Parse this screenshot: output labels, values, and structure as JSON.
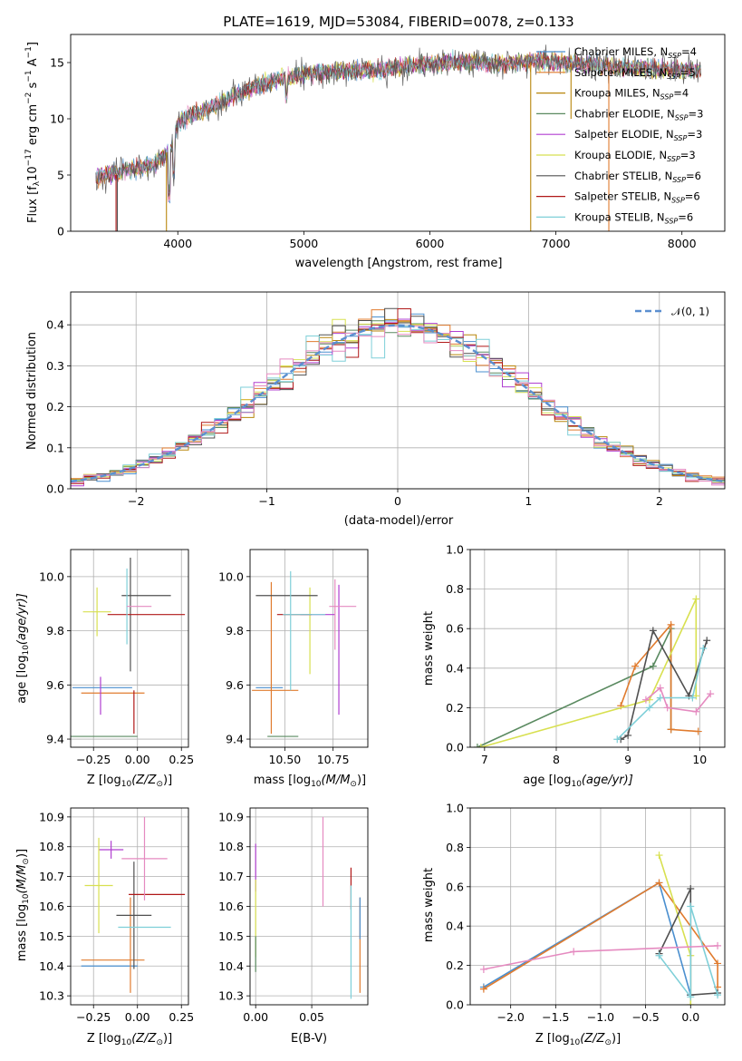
{
  "title": "PLATE=1619, MJD=53084, FIBERID=0078, z=0.133",
  "colors": [
    "#4a8fcf",
    "#e07b2e",
    "#b8860b",
    "#5a8a60",
    "#b03fd0",
    "#d8e050",
    "#505050",
    "#b01818",
    "#7ecfd8",
    "#e58ac0"
  ],
  "legend": [
    {
      "label": "Chabrier MILES, N",
      "sub": "SSP",
      "suf": "=4",
      "color": "#4a8fcf"
    },
    {
      "label": "Salpeter MILES, N",
      "sub": "SSP",
      "suf": "=5",
      "color": "#e07b2e"
    },
    {
      "label": "Kroupa MILES, N",
      "sub": "SSP",
      "suf": "=4",
      "color": "#b8860b"
    },
    {
      "label": "Chabrier ELODIE, N",
      "sub": "SSP",
      "suf": "=3",
      "color": "#5a8a60"
    },
    {
      "label": "Salpeter ELODIE, N",
      "sub": "SSP",
      "suf": "=3",
      "color": "#b03fd0"
    },
    {
      "label": "Kroupa ELODIE, N",
      "sub": "SSP",
      "suf": "=3",
      "color": "#d8e050"
    },
    {
      "label": "Chabrier STELIB, N",
      "sub": "SSP",
      "suf": "=6",
      "color": "#505050"
    },
    {
      "label": "Salpeter STELIB, N",
      "sub": "SSP",
      "suf": "=6",
      "color": "#b01818"
    },
    {
      "label": "Kroupa STELIB, N",
      "sub": "SSP",
      "suf": "=6",
      "color": "#7ecfd8"
    }
  ],
  "labels": {
    "spec_x": "wavelength [Angstrom, rest frame]",
    "spec_y": "Flux [f",
    "spec_y_tail": "10",
    "spec_y_exp": "−17",
    "spec_y_units": " erg cm",
    "spec_y_u2": "−2",
    "spec_y_u3": " s",
    "spec_y_u4": "−1",
    "spec_y_u5": " A",
    "spec_y_u6": "−1",
    "spec_y_end": "]",
    "hist_x": "(data-model)/error",
    "hist_y": "Normed distribution",
    "hist_legend": "𝒩(0, 1)",
    "z_label": "Z [log",
    "z_label_sub": "10",
    "z_label_tail": "(Z/Z",
    "z_label_sun": "⊙",
    "z_label_end": ")]",
    "age_label": "age  [log",
    "age_label_sub": "10",
    "age_label_tail": "(age/yr)]",
    "mass_label": "mass [log",
    "mass_label_sub": "10",
    "mass_label_tail": "(M/M",
    "mass_label_sun": "⊙",
    "mass_label_end": ")]",
    "mw_label": "mass weight",
    "ebv_label": "E(B-V)"
  },
  "chart_data": [
    {
      "id": "spectrum",
      "type": "line",
      "title": "PLATE=1619, MJD=53084, FIBERID=0078, z=0.133",
      "xlabel": "wavelength [Angstrom, rest frame]",
      "ylabel": "Flux [fλ10^-17 erg cm^-2 s^-1 A^-1]",
      "xlim": [
        3150,
        8340
      ],
      "ylim": [
        0,
        17.5
      ],
      "xticks": [
        4000,
        5000,
        6000,
        7000,
        8000
      ],
      "yticks": [
        0,
        5,
        10,
        15
      ],
      "continuum": [
        [
          3350,
          4.8
        ],
        [
          3500,
          5.2
        ],
        [
          3650,
          5.6
        ],
        [
          3800,
          5.8
        ],
        [
          3950,
          7.4
        ],
        [
          4000,
          9.6
        ],
        [
          4100,
          10.3
        ],
        [
          4300,
          11.2
        ],
        [
          4500,
          12.4
        ],
        [
          4700,
          13.2
        ],
        [
          4900,
          13.8
        ],
        [
          5100,
          14.1
        ],
        [
          5300,
          14.2
        ],
        [
          5500,
          14.3
        ],
        [
          5700,
          14.5
        ],
        [
          5900,
          14.8
        ],
        [
          6100,
          15.0
        ],
        [
          6300,
          15.0
        ],
        [
          6500,
          14.9
        ],
        [
          6700,
          15.0
        ],
        [
          6900,
          15.1
        ],
        [
          7100,
          15.0
        ],
        [
          7300,
          14.8
        ],
        [
          7500,
          14.6
        ],
        [
          7700,
          14.5
        ],
        [
          7900,
          14.4
        ],
        [
          8150,
          14.3
        ]
      ]
    },
    {
      "id": "residuals",
      "type": "histogram",
      "xlabel": "(data-model)/error",
      "ylabel": "Normed distribution",
      "xlim": [
        -2.5,
        2.5
      ],
      "ylim": [
        0,
        0.48
      ],
      "xticks": [
        -2,
        -1,
        0,
        1,
        2
      ],
      "yticks": [
        0.0,
        0.1,
        0.2,
        0.3,
        0.4
      ],
      "legend": [
        "𝒩(0, 1)"
      ],
      "legend_position": "top-right",
      "bin_width": 0.1
    },
    {
      "id": "age_vs_Z",
      "type": "scatter",
      "xlabel": "Z [log10(Z/Z⊙)]",
      "ylabel": "age  [log10(age/yr)]",
      "xlim": [
        -0.38,
        0.29
      ],
      "ylim": [
        9.37,
        10.1
      ],
      "xticks": [
        -0.25,
        0.0,
        0.25
      ],
      "yticks": [
        9.4,
        9.6,
        9.8,
        10.0
      ],
      "points": [
        {
          "x": -0.2,
          "y": 9.59,
          "xerr": 0.17,
          "yerr": 0.0,
          "c": "#4a8fcf"
        },
        {
          "x": -0.14,
          "y": 9.57,
          "xerr": 0.18,
          "yerr": 0.0,
          "c": "#e07b2e"
        },
        {
          "x": -0.2,
          "y": 9.41,
          "xerr": 0.2,
          "yerr": 0.0,
          "c": "#5a8a60"
        },
        {
          "x": -0.21,
          "y": 9.56,
          "xerr": 0.0,
          "yerr": 0.07,
          "c": "#b03fd0"
        },
        {
          "x": -0.23,
          "y": 9.87,
          "xerr": 0.08,
          "yerr": 0.09,
          "c": "#d8e050"
        },
        {
          "x": 0.05,
          "y": 9.93,
          "xerr": 0.14,
          "yerr": 0.0,
          "c": "#505050"
        },
        {
          "x": -0.04,
          "y": 9.86,
          "xerr": 0.0,
          "yerr": 0.21,
          "c": "#505050"
        },
        {
          "x": 0.05,
          "y": 9.86,
          "xerr": 0.22,
          "yerr": 0.0,
          "c": "#b01818"
        },
        {
          "x": -0.02,
          "y": 9.5,
          "xerr": 0.0,
          "yerr": 0.08,
          "c": "#b01818"
        },
        {
          "x": -0.06,
          "y": 9.89,
          "xerr": 0.0,
          "yerr": 0.14,
          "c": "#7ecfd8"
        },
        {
          "x": 0.01,
          "y": 9.89,
          "xerr": 0.07,
          "yerr": 0.0,
          "c": "#e58ac0"
        }
      ]
    },
    {
      "id": "age_vs_mass",
      "type": "scatter",
      "xlabel": "mass [log10(M/M⊙)]",
      "ylabel": "",
      "xlim": [
        10.32,
        10.93
      ],
      "ylim": [
        9.37,
        10.1
      ],
      "xticks": [
        10.5,
        10.75
      ],
      "yticks": [
        9.4,
        9.6,
        9.8,
        10.0
      ],
      "points": [
        {
          "x": 10.42,
          "y": 9.59,
          "xerr": 0.07,
          "yerr": 0.0,
          "c": "#4a8fcf"
        },
        {
          "x": 10.45,
          "y": 9.58,
          "xerr": 0.12,
          "yerr": 0.0,
          "c": "#e07b2e"
        },
        {
          "x": 10.43,
          "y": 9.7,
          "xerr": 0.0,
          "yerr": 0.28,
          "c": "#e07b2e"
        },
        {
          "x": 10.49,
          "y": 9.41,
          "xerr": 0.08,
          "yerr": 0.0,
          "c": "#5a8a60"
        },
        {
          "x": 10.78,
          "y": 9.73,
          "xerr": 0.0,
          "yerr": 0.24,
          "c": "#b03fd0"
        },
        {
          "x": 10.67,
          "y": 9.86,
          "xerr": 0.09,
          "yerr": 0.0,
          "c": "#b03fd0"
        },
        {
          "x": 10.63,
          "y": 9.8,
          "xerr": 0.0,
          "yerr": 0.16,
          "c": "#d8e050"
        },
        {
          "x": 10.51,
          "y": 9.93,
          "xerr": 0.16,
          "yerr": 0.0,
          "c": "#505050"
        },
        {
          "x": 10.55,
          "y": 9.86,
          "xerr": 0.09,
          "yerr": 0.0,
          "c": "#b01818"
        },
        {
          "x": 10.6,
          "y": 9.86,
          "xerr": 0.11,
          "yerr": 0.0,
          "c": "#7ecfd8"
        },
        {
          "x": 10.53,
          "y": 9.8,
          "xerr": 0.0,
          "yerr": 0.22,
          "c": "#7ecfd8"
        },
        {
          "x": 10.8,
          "y": 9.89,
          "xerr": 0.07,
          "yerr": 0.0,
          "c": "#e58ac0"
        },
        {
          "x": 10.76,
          "y": 9.86,
          "xerr": 0.0,
          "yerr": 0.13,
          "c": "#e58ac0"
        }
      ]
    },
    {
      "id": "mw_vs_age",
      "type": "line",
      "xlabel": "age  [log10(age/yr)]",
      "ylabel": "mass weight",
      "xlim": [
        6.8,
        10.35
      ],
      "ylim": [
        0,
        1.0
      ],
      "xticks": [
        7,
        8,
        9,
        10
      ],
      "yticks": [
        0.0,
        0.2,
        0.4,
        0.6,
        0.8,
        1.0
      ],
      "series": [
        {
          "c": "#5a8a60",
          "x": [
            6.9,
            9.35,
            9.6,
            9.6
          ],
          "y": [
            0.0,
            0.41,
            0.6,
            0.09
          ]
        },
        {
          "c": "#e07b2e",
          "x": [
            8.9,
            9.1,
            9.6,
            9.6,
            9.98
          ],
          "y": [
            0.21,
            0.41,
            0.62,
            0.09,
            0.08
          ]
        },
        {
          "c": "#d8e050",
          "x": [
            6.95,
            9.3,
            9.95,
            9.95
          ],
          "y": [
            0.0,
            0.24,
            0.75,
            0.26
          ]
        },
        {
          "c": "#505050",
          "x": [
            8.9,
            9.0,
            9.35,
            9.85,
            10.1
          ],
          "y": [
            0.04,
            0.06,
            0.59,
            0.26,
            0.54
          ]
        },
        {
          "c": "#7ecfd8",
          "x": [
            8.85,
            9.3,
            9.45,
            9.9,
            10.05
          ],
          "y": [
            0.04,
            0.2,
            0.25,
            0.25,
            0.5
          ]
        },
        {
          "c": "#e58ac0",
          "x": [
            9.25,
            9.45,
            9.55,
            9.95,
            10.15
          ],
          "y": [
            0.24,
            0.3,
            0.2,
            0.18,
            0.27
          ]
        }
      ]
    },
    {
      "id": "mass_vs_Z",
      "type": "scatter",
      "xlabel": "Z [log10(Z/Z⊙)]",
      "ylabel": "mass [log10(M/M⊙)]",
      "xlim": [
        -0.38,
        0.29
      ],
      "ylim": [
        10.27,
        10.93
      ],
      "xticks": [
        -0.25,
        0.0,
        0.25
      ],
      "yticks": [
        10.3,
        10.4,
        10.5,
        10.6,
        10.7,
        10.8,
        10.9
      ],
      "points": [
        {
          "x": -0.16,
          "y": 10.4,
          "xerr": 0.16,
          "yerr": 0.0,
          "c": "#4a8fcf"
        },
        {
          "x": -0.14,
          "y": 10.42,
          "xerr": 0.18,
          "yerr": 0.0,
          "c": "#e07b2e"
        },
        {
          "x": -0.04,
          "y": 10.47,
          "xerr": 0.0,
          "yerr": 0.16,
          "c": "#e07b2e"
        },
        {
          "x": -0.15,
          "y": 10.79,
          "xerr": 0.07,
          "yerr": 0.03,
          "c": "#b03fd0"
        },
        {
          "x": -0.22,
          "y": 10.67,
          "xerr": 0.08,
          "yerr": 0.16,
          "c": "#d8e050"
        },
        {
          "x": -0.02,
          "y": 10.57,
          "xerr": 0.1,
          "yerr": 0.18,
          "c": "#505050"
        },
        {
          "x": 0.11,
          "y": 10.64,
          "xerr": 0.16,
          "yerr": 0.0,
          "c": "#b01818"
        },
        {
          "x": 0.04,
          "y": 10.53,
          "xerr": 0.15,
          "yerr": 0.0,
          "c": "#7ecfd8"
        },
        {
          "x": 0.04,
          "y": 10.76,
          "xerr": 0.13,
          "yerr": 0.14,
          "c": "#e58ac0"
        }
      ]
    },
    {
      "id": "mass_vs_EBV",
      "type": "scatter",
      "xlabel": "E(B-V)",
      "ylabel": "",
      "xlim": [
        -0.005,
        0.1
      ],
      "ylim": [
        10.27,
        10.93
      ],
      "xticks": [
        0.0,
        0.05
      ],
      "yticks": [
        10.3,
        10.4,
        10.5,
        10.6,
        10.7,
        10.8,
        10.9
      ],
      "points": [
        {
          "x": 0.0,
          "y": 10.73,
          "yerr": 0.08,
          "c": "#b03fd0"
        },
        {
          "x": 0.0,
          "y": 10.56,
          "yerr": 0.13,
          "c": "#d8e050"
        },
        {
          "x": 0.0,
          "y": 10.44,
          "yerr": 0.06,
          "c": "#5a8a60"
        },
        {
          "x": 0.06,
          "y": 10.75,
          "yerr": 0.15,
          "c": "#e58ac0"
        },
        {
          "x": 0.085,
          "y": 10.66,
          "yerr": 0.07,
          "c": "#b01818"
        },
        {
          "x": 0.085,
          "y": 10.48,
          "yerr": 0.19,
          "c": "#7ecfd8"
        },
        {
          "x": 0.093,
          "y": 10.47,
          "yerr": 0.16,
          "c": "#e07b2e"
        },
        {
          "x": 0.093,
          "y": 10.56,
          "yerr": 0.07,
          "c": "#4a8fcf"
        }
      ]
    },
    {
      "id": "mw_vs_Z",
      "type": "line",
      "xlabel": "Z [log10(Z/Z⊙)]",
      "ylabel": "mass weight",
      "xlim": [
        -2.45,
        0.38
      ],
      "ylim": [
        0,
        1.0
      ],
      "xticks": [
        -2.0,
        -1.5,
        -1.0,
        -0.5,
        0.0
      ],
      "yticks": [
        0.0,
        0.2,
        0.4,
        0.6,
        0.8,
        1.0
      ],
      "series": [
        {
          "c": "#4a8fcf",
          "x": [
            -2.3,
            -0.35,
            0.0,
            0.0
          ],
          "y": [
            0.09,
            0.62,
            0.05,
            0.05
          ]
        },
        {
          "c": "#e07b2e",
          "x": [
            -2.3,
            -0.35,
            0.3,
            0.3
          ],
          "y": [
            0.08,
            0.62,
            0.21,
            0.09
          ]
        },
        {
          "c": "#d8e050",
          "x": [
            -0.35,
            0.0,
            0.0
          ],
          "y": [
            0.76,
            0.25,
            0.0
          ]
        },
        {
          "c": "#505050",
          "x": [
            -0.35,
            -0.35,
            0.0,
            0.0,
            0.3
          ],
          "y": [
            0.26,
            0.26,
            0.59,
            0.05,
            0.06
          ]
        },
        {
          "c": "#7ecfd8",
          "x": [
            -0.35,
            0.0,
            0.0,
            0.3
          ],
          "y": [
            0.25,
            0.04,
            0.5,
            0.05
          ]
        },
        {
          "c": "#e58ac0",
          "x": [
            -2.3,
            -1.3,
            0.3
          ],
          "y": [
            0.18,
            0.27,
            0.3
          ]
        }
      ]
    }
  ]
}
